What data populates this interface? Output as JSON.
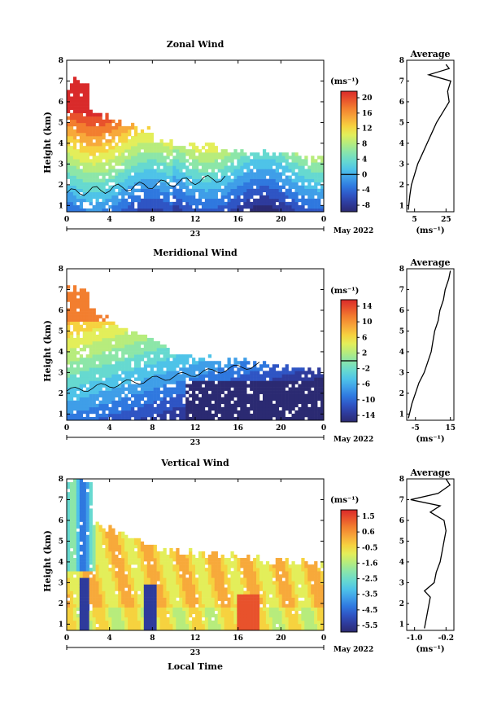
{
  "palette": [
    "#2b2a72",
    "#2e3b9c",
    "#2f55c4",
    "#2f78df",
    "#3f9ee8",
    "#4ec3e8",
    "#66d9d0",
    "#8ce6a8",
    "#b7ec7c",
    "#e3ee5a",
    "#f6d23f",
    "#f7a93a",
    "#f27e2f",
    "#e8522c",
    "#d92a2a"
  ],
  "panels": [
    {
      "id": "zonal",
      "title": "Zonal Wind",
      "ylabel": "Height (km)",
      "yticks": [
        "1",
        "2",
        "3",
        "4",
        "5",
        "6",
        "7",
        "8"
      ],
      "xticks": [
        "0",
        "4",
        "8",
        "12",
        "16",
        "20",
        "0"
      ],
      "date_day": "23",
      "date_month": "May 2022",
      "colorbar": {
        "unit": "(ms⁻¹)",
        "labels": [
          "20",
          "16",
          "12",
          "8",
          "4",
          "0",
          "-4",
          "-8"
        ],
        "zero_label": "0"
      },
      "avg_title": "Average",
      "avg_xticks": [
        "5",
        "25"
      ],
      "avg_unit": "(ms⁻¹)",
      "chart_data": {
        "type": "heatmap",
        "title": "Zonal Wind",
        "x_label_below": "",
        "x": "Local time (h), 0–24, 23 May 2022",
        "y": "Height (km), 0.7–8",
        "colorbar_range": [
          -8,
          22
        ],
        "colorbar_ticks": [
          -8,
          -4,
          0,
          4,
          8,
          12,
          16,
          20
        ],
        "zero_contour": true,
        "average_profile": {
          "xlim": [
            0,
            30
          ],
          "xticks": [
            5,
            25
          ],
          "height_km": [
            0.8,
            1.5,
            2.0,
            2.5,
            3.0,
            3.5,
            4.0,
            4.5,
            5.0,
            5.5,
            6.0,
            6.5,
            7.0,
            7.3,
            7.6,
            7.8
          ],
          "wind_ms": [
            1,
            2,
            3,
            5,
            7,
            10,
            13,
            16,
            19,
            23,
            27,
            26,
            28,
            14,
            27,
            25
          ]
        }
      }
    },
    {
      "id": "meridional",
      "title": "Meridional Wind",
      "ylabel": "Height (km)",
      "yticks": [
        "1",
        "2",
        "3",
        "4",
        "5",
        "6",
        "7",
        "8"
      ],
      "xticks": [
        "0",
        "4",
        "8",
        "12",
        "16",
        "20",
        "0"
      ],
      "date_day": "23",
      "date_month": "May 2022",
      "colorbar": {
        "unit": "(ms⁻¹)",
        "labels": [
          "14",
          "10",
          "6",
          "2",
          "-2",
          "-6",
          "-10",
          "-14"
        ],
        "zero_label": ""
      },
      "avg_title": "Average",
      "avg_xticks": [
        "-5",
        "15"
      ],
      "avg_unit": "(ms⁻¹)",
      "chart_data": {
        "type": "heatmap",
        "title": "Meridional Wind",
        "x": "Local time (h), 0–24, 23 May 2022",
        "y": "Height (km), 0.7–8",
        "colorbar_range": [
          -16,
          16
        ],
        "colorbar_ticks": [
          -14,
          -10,
          -6,
          -2,
          2,
          6,
          10,
          14
        ],
        "zero_contour": true,
        "average_profile": {
          "xlim": [
            -10,
            17
          ],
          "xticks": [
            -5,
            15
          ],
          "height_km": [
            0.8,
            1.5,
            2.0,
            2.5,
            3.0,
            3.5,
            4.0,
            4.5,
            5.0,
            5.5,
            6.0,
            6.5,
            7.0,
            7.5,
            7.9
          ],
          "wind_ms": [
            -9,
            -7,
            -5,
            -3,
            0,
            2,
            4,
            5,
            6,
            8,
            9,
            11,
            12,
            14,
            15
          ]
        }
      }
    },
    {
      "id": "vertical",
      "title": "Vertical Wind",
      "ylabel": "Height (km)",
      "yticks": [
        "1",
        "2",
        "3",
        "4",
        "5",
        "6",
        "7",
        "8"
      ],
      "xticks": [
        "0",
        "4",
        "8",
        "12",
        "16",
        "20",
        "0"
      ],
      "date_day": "23",
      "date_month": "May 2022",
      "xlabel": "Local Time",
      "colorbar": {
        "unit": "(ms⁻¹)",
        "labels": [
          "1.5",
          "0.6",
          "-0.5",
          "-1.6",
          "-2.5",
          "-3.5",
          "-4.5",
          "-5.5"
        ],
        "zero_label": ""
      },
      "avg_title": "Average",
      "avg_xticks": [
        "-1.0",
        "-0.2"
      ],
      "avg_unit": "(ms⁻¹)",
      "chart_data": {
        "type": "heatmap",
        "title": "Vertical Wind",
        "x": "Local time (h), 0–24, 23 May 2022",
        "y": "Height (km), 0.7–8",
        "colorbar_range": [
          -6,
          2
        ],
        "colorbar_ticks": [
          -5.5,
          -4.5,
          -3.5,
          -2.5,
          -1.6,
          -0.5,
          0.6,
          1.5
        ],
        "zero_contour": false,
        "average_profile": {
          "xlim": [
            -1.2,
            0
          ],
          "xticks": [
            -1.0,
            -0.2
          ],
          "height_km": [
            0.8,
            1.3,
            1.8,
            2.3,
            2.6,
            3.0,
            3.5,
            4.0,
            4.5,
            5.0,
            5.5,
            6.0,
            6.4,
            6.7,
            7.0,
            7.3,
            7.7,
            8.0
          ],
          "wind_ms": [
            -0.75,
            -0.7,
            -0.65,
            -0.6,
            -0.75,
            -0.5,
            -0.45,
            -0.35,
            -0.3,
            -0.25,
            -0.2,
            -0.25,
            -0.6,
            -0.35,
            -1.1,
            -0.4,
            -0.1,
            -0.2
          ]
        }
      }
    }
  ]
}
